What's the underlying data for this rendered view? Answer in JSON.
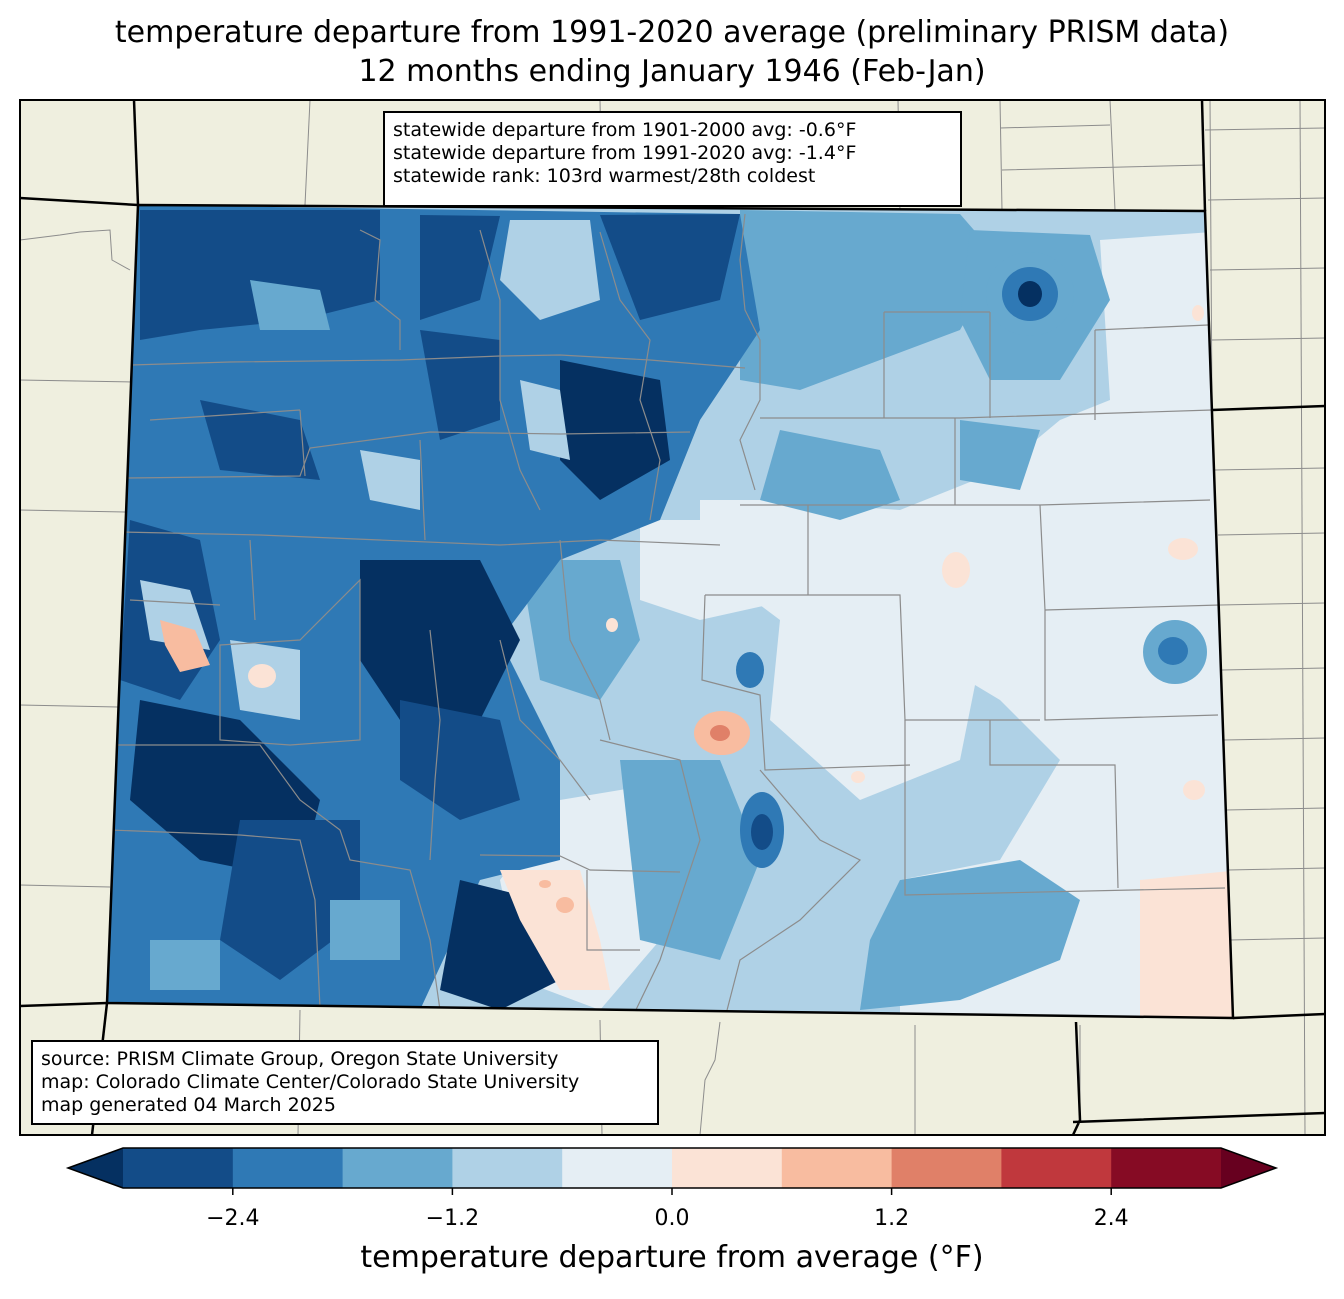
{
  "title": {
    "line1": "temperature departure from 1991-2020 average (preliminary PRISM data)",
    "line2": "12 months ending January 1946 (Feb-Jan)"
  },
  "stats": {
    "line1": "statewide departure from 1901-2000 avg: -0.6°F",
    "line2": "statewide departure from 1991-2020 avg: -1.4°F",
    "line3": "statewide rank: 103rd warmest/28th coldest"
  },
  "source": {
    "line1": "source: PRISM Climate Group, Oregon State University",
    "line2": "map: Colorado Climate Center/Colorado State University",
    "line3": "map generated 04 March 2025"
  },
  "colorbar": {
    "label": "temperature departure from average (°F)",
    "ticks": [
      "−2.4",
      "−1.2",
      "0.0",
      "1.2",
      "2.4"
    ],
    "levels": [
      -3.0,
      -2.4,
      -1.8,
      -1.2,
      -0.6,
      0.0,
      0.6,
      1.2,
      1.8,
      2.4,
      3.0
    ],
    "colors": [
      "#053061",
      "#134c88",
      "#2f79b5",
      "#67a9cf",
      "#afd1e6",
      "#e5eef4",
      "#fbe3d6",
      "#f8bca0",
      "#e08068",
      "#c0383d",
      "#860b24",
      "#67001f"
    ]
  },
  "colors": {
    "land": "#efefdf",
    "state_border": "#000000",
    "county_border": "#8c8c8c"
  }
}
